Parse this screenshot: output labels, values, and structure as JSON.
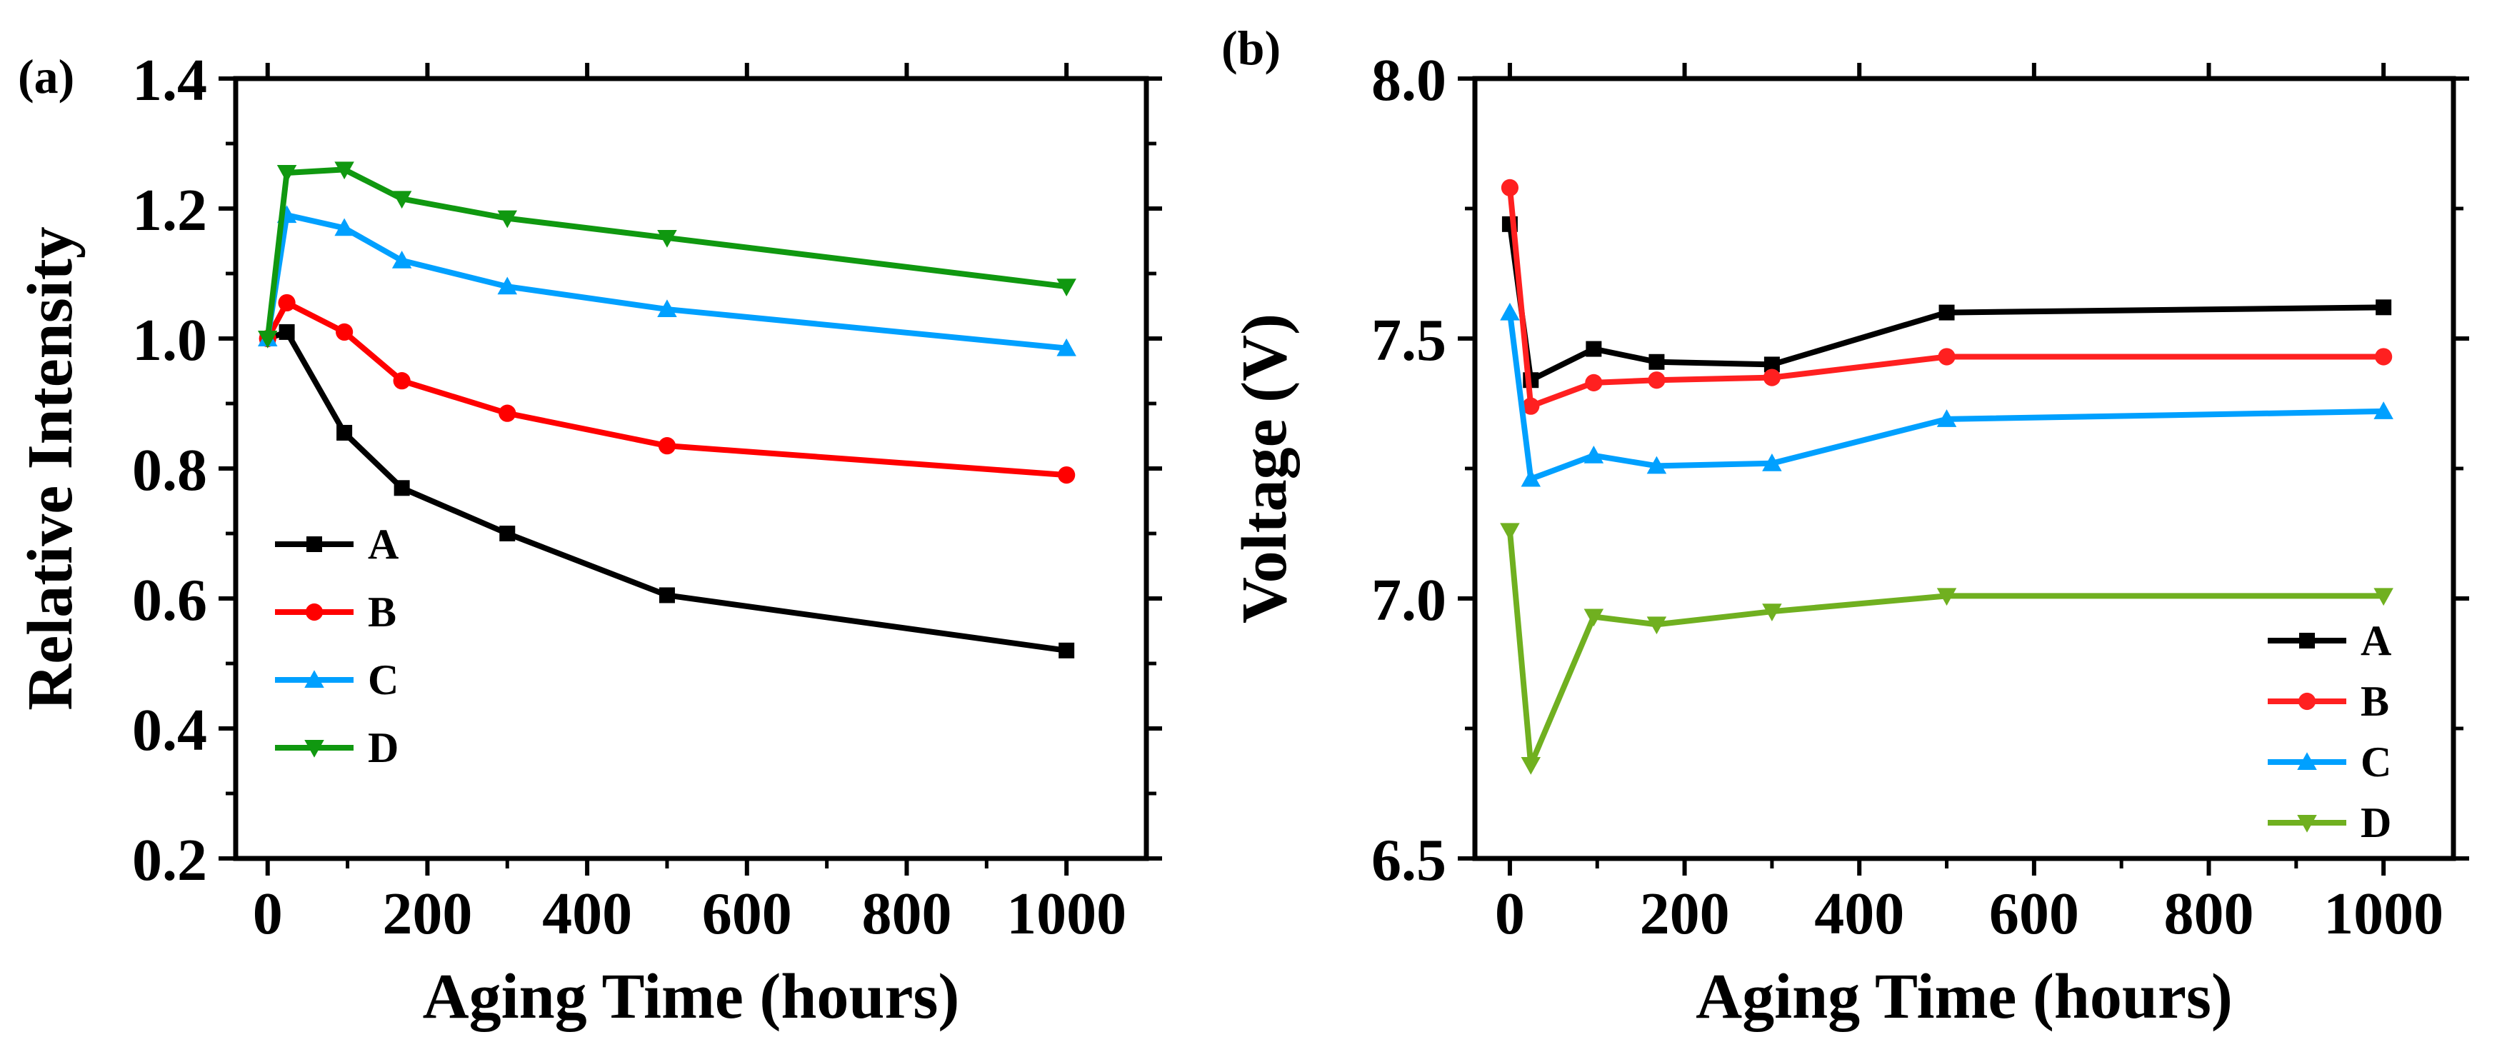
{
  "chart_data": [
    {
      "type": "line",
      "panel_label": "(a)",
      "xlabel": "Aging Time (hours)",
      "ylabel": "Relative Intensity",
      "xlim": [
        -40,
        1100
      ],
      "ylim": [
        0.2,
        1.4
      ],
      "xticks": [
        0,
        200,
        400,
        600,
        800,
        1000
      ],
      "yticks": [
        0.2,
        0.4,
        0.6,
        0.8,
        1.0,
        1.2,
        1.4
      ],
      "xtick_labels": [
        "0",
        "200",
        "400",
        "600",
        "800",
        "1000"
      ],
      "ytick_labels": [
        "0.2",
        "0.4",
        "0.6",
        "0.8",
        "1.0",
        "1.2",
        "1.4"
      ],
      "legend_position": "lower-left",
      "x": [
        0,
        24,
        96,
        168,
        300,
        500,
        1000
      ],
      "series": [
        {
          "name": "A",
          "color": "#000000",
          "marker": "square",
          "values": [
            1.0,
            1.01,
            0.855,
            0.77,
            0.7,
            0.605,
            0.52
          ]
        },
        {
          "name": "B",
          "color": "#ff0000",
          "marker": "circle",
          "values": [
            1.0,
            1.055,
            1.01,
            0.935,
            0.885,
            0.835,
            0.79
          ]
        },
        {
          "name": "C",
          "color": "#00a0ff",
          "marker": "triangle-up",
          "values": [
            1.0,
            1.19,
            1.17,
            1.12,
            1.08,
            1.045,
            0.985
          ]
        },
        {
          "name": "D",
          "color": "#109810",
          "marker": "triangle-down",
          "values": [
            1.0,
            1.255,
            1.26,
            1.215,
            1.185,
            1.155,
            1.08
          ]
        }
      ]
    },
    {
      "type": "line",
      "panel_label": "(b)",
      "xlabel": "Aging Time (hours)",
      "ylabel": "Voltage (V)",
      "xlim": [
        -40,
        1080
      ],
      "ylim": [
        6.5,
        8.0
      ],
      "xticks": [
        0,
        200,
        400,
        600,
        800,
        1000
      ],
      "yticks": [
        6.5,
        7.0,
        7.5,
        8.0
      ],
      "xtick_labels": [
        "0",
        "200",
        "400",
        "600",
        "800",
        "1000"
      ],
      "ytick_labels": [
        "6.5",
        "7.0",
        "7.5",
        "8.0"
      ],
      "legend_position": "lower-right",
      "x": [
        0,
        24,
        96,
        168,
        300,
        500,
        1000
      ],
      "series": [
        {
          "name": "A",
          "color": "#000000",
          "marker": "square",
          "values": [
            7.72,
            7.42,
            7.48,
            7.455,
            7.45,
            7.55,
            7.56
          ]
        },
        {
          "name": "B",
          "color": "#ff2020",
          "marker": "circle",
          "values": [
            7.79,
            7.37,
            7.415,
            7.42,
            7.425,
            7.465,
            7.465
          ]
        },
        {
          "name": "C",
          "color": "#00a0ff",
          "marker": "triangle-up",
          "values": [
            7.55,
            7.23,
            7.275,
            7.255,
            7.26,
            7.345,
            7.36
          ]
        },
        {
          "name": "D",
          "color": "#70b020",
          "marker": "triangle-down",
          "values": [
            7.13,
            6.68,
            6.965,
            6.95,
            6.975,
            7.005,
            7.005
          ]
        }
      ]
    }
  ]
}
